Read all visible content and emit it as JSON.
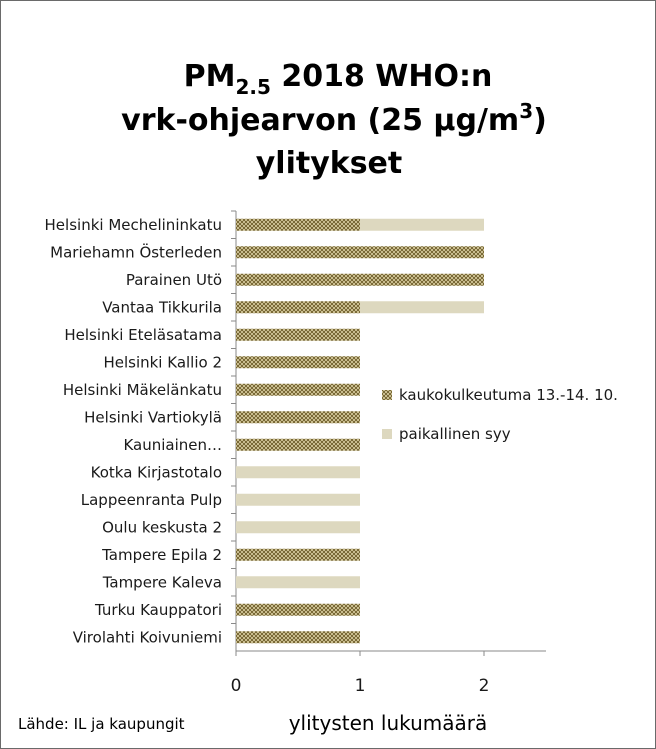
{
  "chart_data": {
    "type": "bar",
    "orientation": "horizontal",
    "stacked": true,
    "title_line1_main": "PM",
    "title_line1_sub": "2.5",
    "title_line1_rest": " 2018 WHO:n",
    "title_line2_main": "vrk-ohjearvon  (25 µg/m",
    "title_line2_sup": "3",
    "title_line2_rest": ")",
    "title_line3": "ylitykset",
    "xlabel": "ylitysten lukumäärä",
    "source_note": "Lähde: IL ja kaupungit",
    "xlim": [
      0,
      2.5
    ],
    "xticks": [
      "0",
      "1",
      "2"
    ],
    "legend_position": "right",
    "categories": [
      "Helsinki Mechelininkatu",
      "Mariehamn Österleden",
      "Parainen Utö",
      "Vantaa Tikkurila",
      "Helsinki Eteläsatama",
      "Helsinki Kallio 2",
      "Helsinki Mäkelänkatu",
      "Helsinki Vartiokylä",
      "Kauniainen…",
      "Kotka Kirjastotalo",
      "Lappeenranta Pulp",
      "Oulu keskusta 2",
      "Tampere Epila 2",
      "Tampere Kaleva",
      "Turku Kauppatori",
      "Virolahti Koivuniemi"
    ],
    "series": [
      {
        "name": "kaukokulkeutuma 13.-14. 10.",
        "color": "#8c7b4a",
        "pattern": "dotted",
        "values": [
          1,
          2,
          2,
          1,
          1,
          1,
          1,
          1,
          1,
          0,
          0,
          0,
          1,
          0,
          1,
          1
        ]
      },
      {
        "name": "paikallinen syy",
        "color": "#ddd8bf",
        "pattern": "solid",
        "values": [
          1,
          0,
          0,
          1,
          0,
          0,
          0,
          0,
          0,
          1,
          1,
          1,
          0,
          1,
          0,
          0
        ]
      }
    ]
  }
}
